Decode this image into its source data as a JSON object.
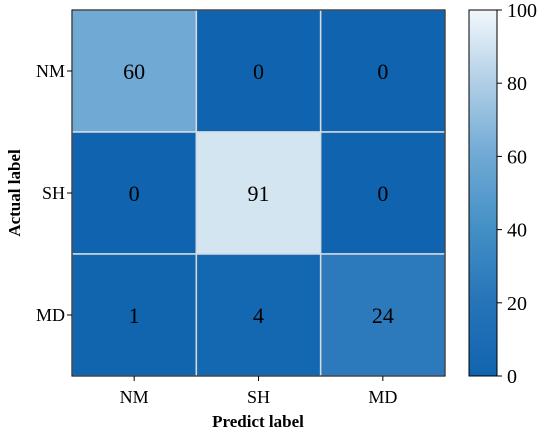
{
  "chart_data": {
    "type": "heatmap",
    "title": "",
    "xlabel": "Predict label",
    "ylabel": "Actual label",
    "x_categories": [
      "NM",
      "SH",
      "MD"
    ],
    "y_categories": [
      "NM",
      "SH",
      "MD"
    ],
    "values": [
      [
        60,
        0,
        0
      ],
      [
        0,
        91,
        0
      ],
      [
        1,
        4,
        24
      ]
    ],
    "colorbar": {
      "range": [
        0,
        100
      ],
      "ticks": [
        0,
        20,
        40,
        60,
        80,
        100
      ],
      "colormap": "Blues_r"
    },
    "grid": true
  }
}
